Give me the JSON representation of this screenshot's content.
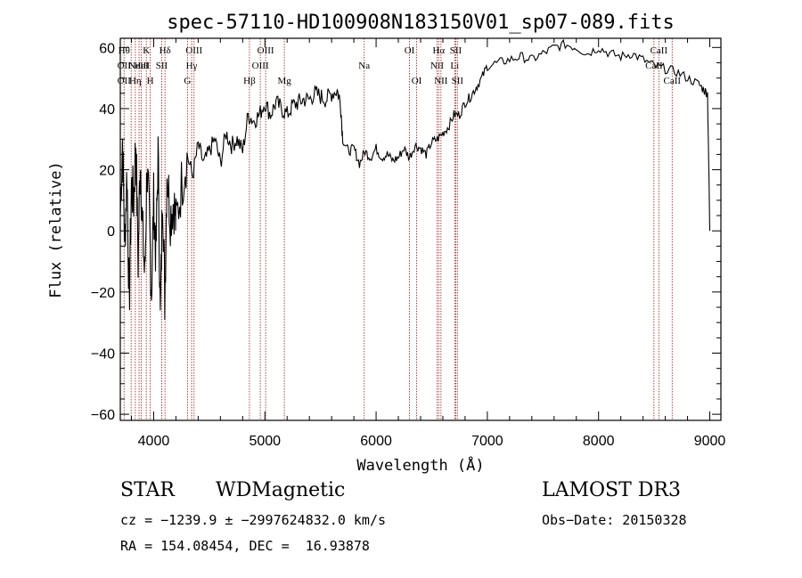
{
  "chart_data": {
    "type": "line",
    "title": "spec-57110-HD100908N183150V01_sp07-089.fits",
    "xlabel": "Wavelength (Å)",
    "ylabel": "Flux (relative)",
    "xlim": [
      3700,
      9100
    ],
    "ylim": [
      -62,
      63
    ],
    "xticks": [
      4000,
      5000,
      6000,
      7000,
      8000,
      9000
    ],
    "yticks": [
      -60,
      -40,
      -20,
      0,
      20,
      40,
      60
    ],
    "grid": false,
    "series": [
      {
        "x": [
          3700,
          3720,
          3740,
          3760,
          3780,
          3800,
          3820,
          3840,
          3860,
          3880,
          3900,
          3920,
          3940,
          3960,
          3980,
          4000,
          4020,
          4040,
          4060,
          4080,
          4100,
          4120,
          4150,
          4180,
          4200,
          4250,
          4300,
          4350,
          4400,
          4450,
          4500,
          4550,
          4600,
          4650,
          4700,
          4750,
          4800,
          4850,
          4900,
          4950,
          5000,
          5050,
          5100,
          5150,
          5200,
          5250,
          5300,
          5350,
          5400,
          5450,
          5500,
          5550,
          5600,
          5650,
          5680,
          5700,
          5750,
          5800,
          5850,
          5900,
          5950,
          6000,
          6050,
          6100,
          6150,
          6200,
          6250,
          6300,
          6350,
          6400,
          6450,
          6500,
          6550,
          6600,
          6650,
          6700,
          6750,
          6800,
          6850,
          6900,
          6950,
          7000,
          7100,
          7200,
          7300,
          7400,
          7500,
          7600,
          7700,
          7800,
          7900,
          8000,
          8100,
          8200,
          8300,
          8400,
          8500,
          8600,
          8700,
          8800,
          8900,
          8950,
          8980,
          9000
        ],
        "values": [
          5,
          30,
          -5,
          20,
          -25,
          15,
          10,
          30,
          -10,
          25,
          0,
          -15,
          20,
          5,
          -20,
          10,
          -8,
          25,
          -30,
          15,
          -22,
          20,
          5,
          10,
          2,
          15,
          25,
          18,
          28,
          22,
          26,
          30,
          22,
          32,
          28,
          30,
          26,
          38,
          36,
          38,
          42,
          38,
          42,
          40,
          38,
          41,
          42,
          43,
          43,
          45,
          44,
          43,
          45,
          46,
          42,
          30,
          26,
          27,
          22,
          26,
          24,
          27,
          24,
          25,
          23,
          24,
          27,
          24,
          28,
          27,
          25,
          29,
          30,
          32,
          34,
          38,
          38,
          42,
          44,
          47,
          50,
          54,
          55,
          56,
          57,
          56,
          58,
          60,
          61,
          60,
          58,
          60,
          58,
          57,
          58,
          56,
          54,
          53,
          52,
          50,
          48,
          46,
          45,
          0
        ]
      }
    ],
    "line_markers": [
      {
        "x": 3734,
        "labels": [
          {
            "text": "Hθ",
            "row": 1
          },
          {
            "text": "OII",
            "row": 2
          },
          {
            "text": "OII",
            "row": 3
          }
        ]
      },
      {
        "x": 3798,
        "labels": []
      },
      {
        "x": 3835,
        "labels": [
          {
            "text": "Hη",
            "row": 3
          }
        ]
      },
      {
        "x": 3869,
        "labels": [
          {
            "text": "NeIII",
            "row": 2
          }
        ]
      },
      {
        "x": 3889,
        "labels": [
          {
            "text": "HeI",
            "row": 2
          }
        ]
      },
      {
        "x": 3934,
        "labels": [
          {
            "text": "K",
            "row": 1
          }
        ]
      },
      {
        "x": 3969,
        "labels": [
          {
            "text": "H",
            "row": 3
          }
        ]
      },
      {
        "x": 4072,
        "labels": [
          {
            "text": "SII",
            "row": 2
          }
        ]
      },
      {
        "x": 4102,
        "labels": [
          {
            "text": "Hδ",
            "row": 1
          }
        ]
      },
      {
        "x": 4304,
        "labels": [
          {
            "text": "G",
            "row": 3
          }
        ]
      },
      {
        "x": 4341,
        "labels": [
          {
            "text": "Hγ",
            "row": 2
          }
        ]
      },
      {
        "x": 4363,
        "labels": [
          {
            "text": "OIII",
            "row": 1
          }
        ]
      },
      {
        "x": 4861,
        "labels": [
          {
            "text": "Hβ",
            "row": 3
          }
        ]
      },
      {
        "x": 4959,
        "labels": [
          {
            "text": "OIII",
            "row": 2
          }
        ]
      },
      {
        "x": 5007,
        "labels": [
          {
            "text": "OIII",
            "row": 1
          }
        ]
      },
      {
        "x": 5175,
        "labels": [
          {
            "text": "Mg",
            "row": 3
          }
        ]
      },
      {
        "x": 5893,
        "labels": [
          {
            "text": "Na",
            "row": 2
          }
        ]
      },
      {
        "x": 6300,
        "labels": [
          {
            "text": "OI",
            "row": 1
          }
        ]
      },
      {
        "x": 6364,
        "labels": [
          {
            "text": "OI",
            "row": 3
          }
        ]
      },
      {
        "x": 6548,
        "labels": [
          {
            "text": "NII",
            "row": 2
          }
        ]
      },
      {
        "x": 6563,
        "labels": [
          {
            "text": "Hα",
            "row": 1
          }
        ]
      },
      {
        "x": 6583,
        "labels": [
          {
            "text": "NII",
            "row": 3
          }
        ]
      },
      {
        "x": 6707,
        "labels": [
          {
            "text": "Li",
            "row": 2
          }
        ]
      },
      {
        "x": 6716,
        "labels": [
          {
            "text": "SII",
            "row": 1
          }
        ]
      },
      {
        "x": 6731,
        "labels": [
          {
            "text": "SII",
            "row": 3
          }
        ]
      },
      {
        "x": 8498,
        "labels": [
          {
            "text": "CaII",
            "row": 2
          }
        ]
      },
      {
        "x": 8542,
        "labels": [
          {
            "text": "CaII",
            "row": 1
          }
        ]
      },
      {
        "x": 8662,
        "labels": [
          {
            "text": "CaII",
            "row": 3
          }
        ]
      }
    ]
  },
  "info": {
    "class": "STAR",
    "subclass": "WDMagnetic",
    "survey": "LAMOST DR3",
    "cz": "cz = −1239.9 ± −2997624832.0 km/s",
    "obsdate": "Obs−Date: 20150328",
    "coords": "RA = 154.08454, DEC =  16.93878"
  },
  "colors": {
    "spectrum": "#000000",
    "marker": "#a0302a",
    "axes": "#000000"
  }
}
